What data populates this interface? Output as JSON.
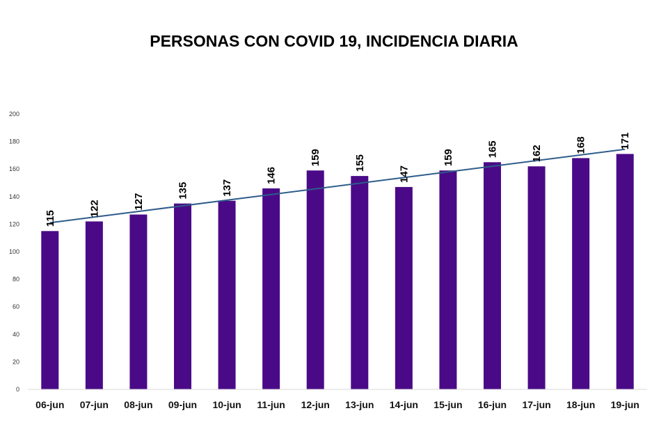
{
  "chart_data": {
    "type": "bar",
    "title": "PERSONAS CON COVID 19, INCIDENCIA DIARIA",
    "xlabel": "",
    "ylabel": "",
    "categories": [
      "06-jun",
      "07-jun",
      "08-jun",
      "09-jun",
      "10-jun",
      "11-jun",
      "12-jun",
      "13-jun",
      "14-jun",
      "15-jun",
      "16-jun",
      "17-jun",
      "18-jun",
      "19-jun"
    ],
    "values": [
      115,
      122,
      127,
      135,
      137,
      146,
      159,
      155,
      147,
      159,
      165,
      162,
      168,
      171
    ],
    "ylim": [
      0,
      200
    ],
    "yticks": [
      0,
      20,
      40,
      60,
      80,
      100,
      120,
      140,
      160,
      180,
      200
    ],
    "trendline": {
      "type": "linear",
      "color": "#2E5C8A"
    },
    "colors": {
      "bar": "#4A0A87",
      "trendline": "#2E5C8A",
      "axis": "#D9D9D9"
    },
    "grid": false,
    "legend": "none"
  }
}
